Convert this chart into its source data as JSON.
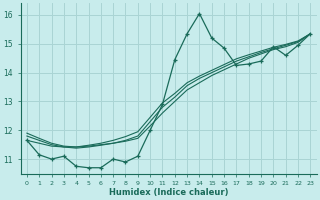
{
  "xlabel": "Humidex (Indice chaleur)",
  "bg_color": "#c8ecec",
  "grid_color": "#aad4d4",
  "line_color": "#1a6b5a",
  "xlim": [
    -0.5,
    23.5
  ],
  "ylim": [
    10.5,
    16.4
  ],
  "xticks": [
    0,
    1,
    2,
    3,
    4,
    5,
    6,
    7,
    8,
    9,
    10,
    11,
    12,
    13,
    14,
    15,
    16,
    17,
    18,
    19,
    20,
    21,
    22,
    23
  ],
  "yticks": [
    11,
    12,
    13,
    14,
    15,
    16
  ],
  "main_y": [
    11.65,
    11.15,
    11.0,
    11.1,
    10.75,
    10.7,
    10.7,
    11.0,
    10.9,
    11.1,
    12.0,
    12.9,
    14.45,
    15.35,
    16.05,
    15.2,
    14.85,
    14.25,
    14.3,
    14.4,
    14.9,
    14.6,
    14.95,
    15.35
  ],
  "line1_y": [
    11.65,
    11.55,
    11.45,
    11.42,
    11.42,
    11.45,
    11.5,
    11.55,
    11.62,
    11.72,
    12.15,
    12.6,
    13.0,
    13.4,
    13.65,
    13.9,
    14.1,
    14.3,
    14.5,
    14.65,
    14.8,
    14.9,
    15.05,
    15.35
  ],
  "line2_y": [
    11.8,
    11.65,
    11.5,
    11.42,
    11.38,
    11.42,
    11.48,
    11.55,
    11.65,
    11.8,
    12.3,
    12.8,
    13.15,
    13.55,
    13.8,
    14.0,
    14.2,
    14.4,
    14.55,
    14.7,
    14.83,
    14.95,
    15.08,
    15.35
  ],
  "line3_y": [
    11.9,
    11.72,
    11.55,
    11.45,
    11.42,
    11.48,
    11.55,
    11.65,
    11.78,
    11.95,
    12.45,
    12.95,
    13.28,
    13.65,
    13.88,
    14.08,
    14.28,
    14.48,
    14.62,
    14.75,
    14.88,
    14.98,
    15.1,
    15.35
  ]
}
